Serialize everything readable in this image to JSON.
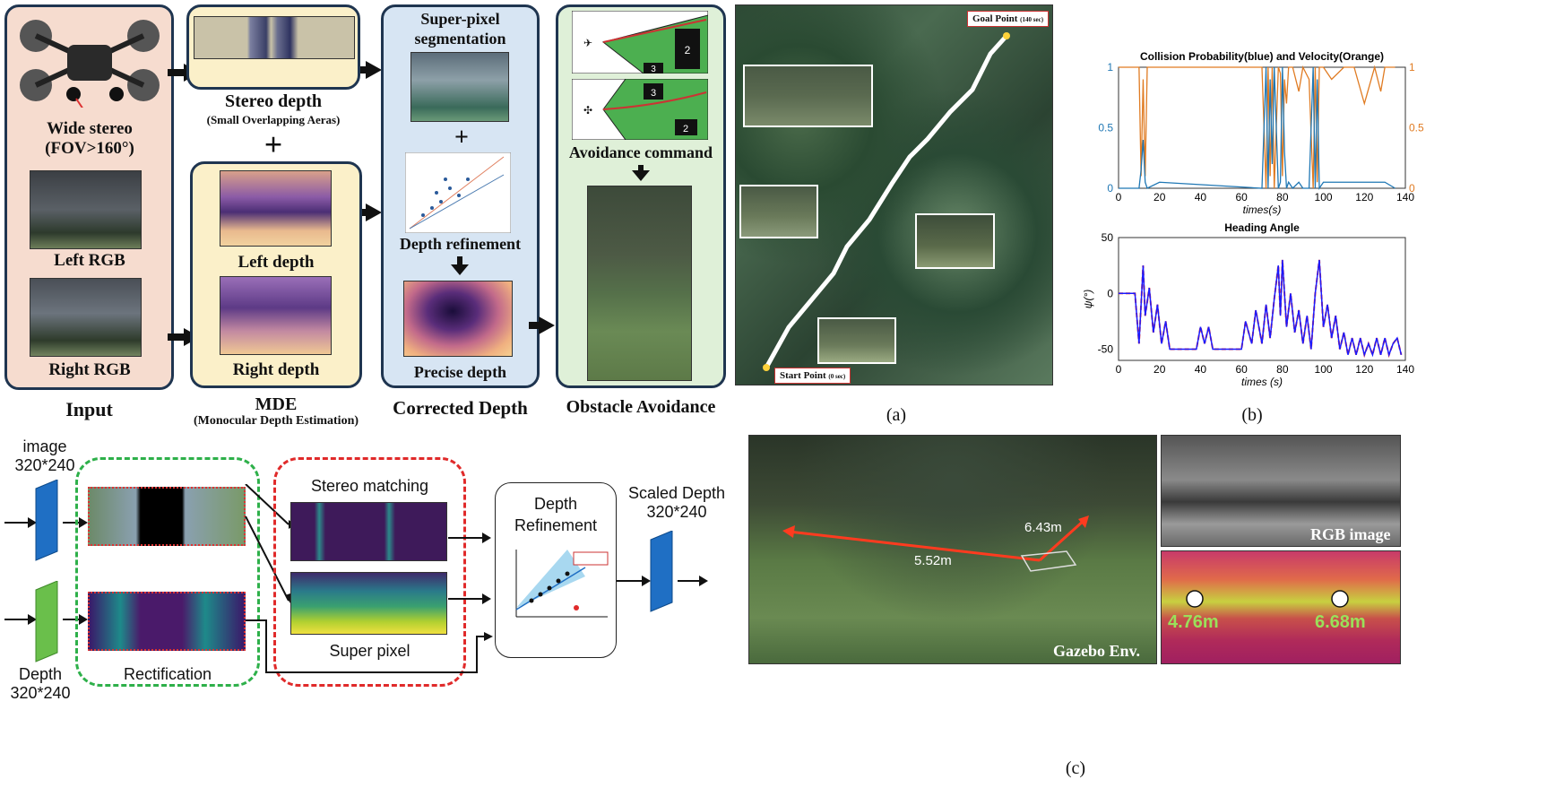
{
  "pipeline": {
    "input_panel": {
      "caption": "Input",
      "wide_stereo_line1": "Wide stereo",
      "wide_stereo_line2": "(FOV>160°)",
      "left_rgb": "Left RGB",
      "right_rgb": "Right RGB"
    },
    "stereo_panel": {
      "title": "Stereo depth",
      "subtitle": "(Small Overlapping Aeras)"
    },
    "plus_sign": "+",
    "mde_panel": {
      "left_depth": "Left depth",
      "right_depth": "Right depth",
      "caption": "MDE",
      "caption_sub": "(Monocular Depth Estimation)"
    },
    "corrected_panel": {
      "title_line1": "Super-pixel",
      "title_line2": "segmentation",
      "plus": "+",
      "depth_refinement": "Depth refinement",
      "precise_depth": "Precise depth",
      "caption": "Corrected Depth"
    },
    "avoidance_panel": {
      "command": "Avoidance command",
      "caption": "Obstacle Avoidance",
      "top_box_num_a": "2",
      "top_box_num_b": "3",
      "bot_box_num_a": "3",
      "bot_box_num_b": "2"
    }
  },
  "panel_a": {
    "goal_label": "Goal Point",
    "goal_time": "(140 sec)",
    "start_label": "Start Point",
    "start_time": "(0 sec)",
    "caption": "(a)"
  },
  "panel_b": {
    "caption": "(b)",
    "chart_data": [
      {
        "type": "line",
        "title": "Collision Probability(blue) and Velocity(Orange)",
        "xlabel": "times(s)",
        "xlim": [
          0,
          140
        ],
        "ylim": [
          0,
          1
        ],
        "x_ticks": [
          "0",
          "20",
          "40",
          "60",
          "80",
          "100",
          "120",
          "140"
        ],
        "y_ticks_left": [
          "0",
          "0.5",
          "1"
        ],
        "y_ticks_right": [
          "0",
          "0.5",
          "1"
        ],
        "colors": {
          "collision": "#1f77b4",
          "velocity": "#e07b22"
        },
        "series": [
          {
            "x": [
              0,
              10,
              11,
              12,
              13,
              14,
              20,
              70,
              72,
              73,
              74,
              75,
              76,
              78,
              79,
              80,
              81,
              82,
              83,
              85,
              88,
              90,
              93,
              95,
              96,
              97,
              98,
              100,
              104,
              110,
              115,
              120,
              125,
              128,
              130,
              135
            ],
            "values": [
              0,
              0,
              0.15,
              0.4,
              0.05,
              0,
              0.05,
              0,
              1,
              0,
              0.9,
              0.2,
              1,
              0,
              0.05,
              1,
              0.3,
              0,
              0.05,
              0,
              0.05,
              0,
              0,
              1,
              0,
              0.9,
              0,
              0.05,
              0.05,
              0.05,
              0.05,
              0.05,
              0.05,
              0.05,
              0.05,
              0
            ]
          },
          {
            "x": [
              0,
              10,
              11,
              12,
              13,
              14,
              20,
              70,
              72,
              73,
              74,
              75,
              76,
              78,
              79,
              80,
              81,
              82,
              83,
              85,
              88,
              90,
              93,
              95,
              96,
              97,
              98,
              100,
              104,
              110,
              115,
              120,
              125,
              128,
              130,
              135
            ],
            "values": [
              1,
              1,
              0.1,
              0.9,
              0.1,
              1,
              1,
              1,
              0,
              1,
              0.1,
              1,
              0,
              1,
              0.95,
              0.1,
              0.9,
              0.7,
              1,
              1,
              0.8,
              1,
              0.9,
              0,
              1,
              0.05,
              1,
              1,
              0.9,
              1,
              1,
              0.7,
              1,
              0.8,
              1,
              1
            ]
          }
        ]
      },
      {
        "type": "line",
        "title": "Heading Angle",
        "xlabel": "times (s)",
        "ylabel": "ψ(°)",
        "xlim": [
          0,
          140
        ],
        "ylim": [
          -60,
          50
        ],
        "x_ticks": [
          "0",
          "20",
          "40",
          "60",
          "80",
          "100",
          "120",
          "140"
        ],
        "y_ticks": [
          "-50",
          "0",
          "50"
        ],
        "colors": {
          "actual": "#1a1aff",
          "reference": "#ff3b1f"
        },
        "series": [
          {
            "x": [
              0,
              8,
              10,
              12,
              13,
              15,
              17,
              19,
              21,
              23,
              25,
              27,
              30,
              38,
              40,
              42,
              44,
              46,
              50,
              60,
              62,
              65,
              67,
              70,
              72,
              74,
              76,
              78,
              79,
              80,
              82,
              84,
              86,
              88,
              90,
              92,
              94,
              96,
              98,
              100,
              102,
              104,
              106,
              108,
              110,
              112,
              114,
              116,
              118,
              120,
              122,
              124,
              126,
              128,
              130,
              132,
              134,
              136,
              138
            ],
            "values": [
              0,
              0,
              -45,
              25,
              -20,
              5,
              -35,
              -10,
              -45,
              -25,
              -50,
              -50,
              -50,
              -50,
              -30,
              -45,
              -30,
              -50,
              -50,
              -50,
              -25,
              -45,
              -15,
              -45,
              -10,
              -40,
              -5,
              25,
              -20,
              30,
              -30,
              0,
              -35,
              -15,
              -45,
              -20,
              -50,
              0,
              30,
              -30,
              -10,
              -40,
              -20,
              -50,
              -35,
              -55,
              -40,
              -55,
              -40,
              -55,
              -45,
              -55,
              -40,
              -55,
              -40,
              -55,
              -45,
              -40,
              -55
            ]
          }
        ]
      }
    ]
  },
  "bottom_pipeline": {
    "image_label_line1": "image",
    "image_label_line2": "320*240",
    "depth_label_line1": "Depth",
    "depth_label_line2": "320*240",
    "rectification": "Rectification",
    "stereo_matching": "Stereo matching",
    "super_pixel": "Super pixel",
    "depth_refinement_line1": "Depth",
    "depth_refinement_line2": "Refinement",
    "scaled_depth_line1": "Scaled Depth",
    "scaled_depth_line2": "320*240"
  },
  "panel_c": {
    "dist_left": "5.52m",
    "dist_right": "6.43m",
    "env_label": "Gazebo Env.",
    "rgb_label": "RGB image",
    "depth_left": "4.76m",
    "depth_right": "6.68m",
    "caption": "(c)"
  }
}
